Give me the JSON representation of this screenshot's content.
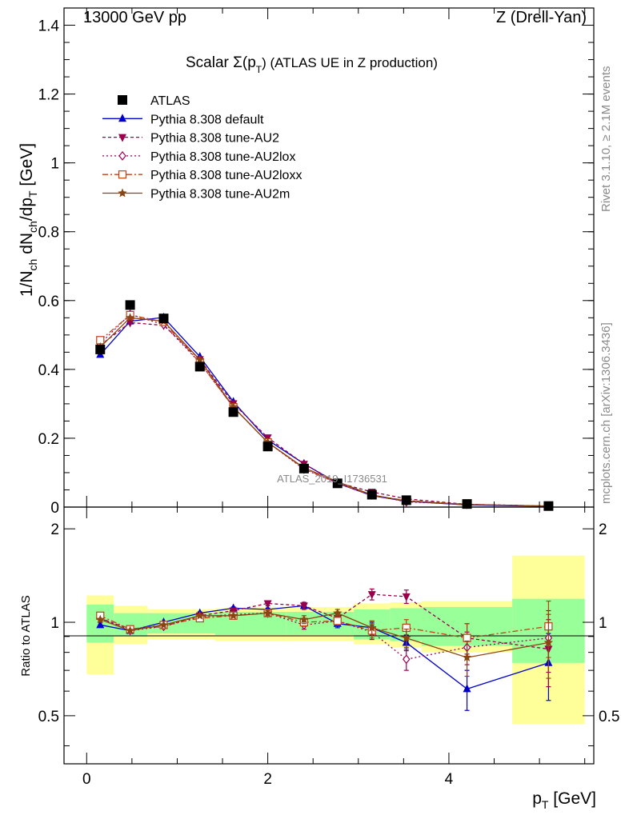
{
  "header": {
    "left": "13000 GeV pp",
    "right": "Z (Drell-Yan)"
  },
  "side_labels": {
    "rivet": "Rivet 3.1.10, ≥ 2.1M events",
    "mcplots": "mcplots.cern.ch [arXiv:1306.3436]"
  },
  "watermark": "ATLAS_2019_I1736531",
  "colors": {
    "ATLAS": "#000000",
    "default": "#0000cc",
    "AU2": "#99004c",
    "AU2lox": "#a0005a",
    "AU2loxx": "#c04010",
    "AU2m": "#8b4513",
    "band_inner": "#99ff99",
    "band_outer": "#ffff99"
  },
  "chart_data": [
    {
      "type": "line",
      "title": "Scalar Σ(p_T) (ATLAS UE in Z production)",
      "title_parts": {
        "main": "Scalar Σ(p",
        "sub": "T",
        "end": ") (ATLAS UE in Z production)"
      },
      "xlabel": "p_T [GeV]",
      "xlabel_parts": {
        "main": "p",
        "sub": "T",
        "end": " [GeV]"
      },
      "ylabel": "1/N_ch dN_ch/dp_T [GeV]",
      "xlim": [
        -0.25,
        5.6
      ],
      "ylim": [
        0,
        1.45
      ],
      "xticks": [
        "0",
        "2",
        "4"
      ],
      "yticks": [
        "0",
        "0.2",
        "0.4",
        "0.6",
        "0.8",
        "1",
        "1.2",
        "1.4"
      ],
      "legend_position": "top-left",
      "x": [
        0.15,
        0.48,
        0.85,
        1.25,
        1.62,
        2.0,
        2.4,
        2.77,
        3.15,
        3.53,
        4.2,
        5.1
      ],
      "series": [
        {
          "name": "ATLAS",
          "key": "ATLAS",
          "marker": "square",
          "dash": "none",
          "values": [
            0.458,
            0.587,
            0.548,
            0.408,
            0.276,
            0.176,
            0.112,
            0.069,
            0.036,
            0.02,
            0.009,
            0.003
          ]
        },
        {
          "name": "Pythia 8.308 default",
          "key": "default",
          "marker": "triangle-up",
          "dash": "none",
          "values": [
            0.443,
            0.54,
            0.551,
            0.437,
            0.306,
            0.195,
            0.126,
            0.069,
            0.033,
            0.017,
            0.006,
            0.002
          ]
        },
        {
          "name": "Pythia 8.308 tune-AU2",
          "key": "AU2",
          "marker": "triangle-down",
          "dash": "4,3",
          "values": [
            0.47,
            0.536,
            0.528,
            0.429,
            0.301,
            0.202,
            0.125,
            0.071,
            0.044,
            0.024,
            0.008,
            0.003
          ]
        },
        {
          "name": "Pythia 8.308 tune-AU2lox",
          "key": "AU2lox",
          "marker": "diamond-open",
          "dash": "2,3",
          "values": [
            0.475,
            0.56,
            0.53,
            0.42,
            0.29,
            0.188,
            0.11,
            0.07,
            0.035,
            0.015,
            0.008,
            0.003
          ]
        },
        {
          "name": "Pythia 8.308 tune-AU2loxx",
          "key": "AU2loxx",
          "marker": "square-open",
          "dash": "7,3,2,3",
          "values": [
            0.485,
            0.558,
            0.538,
            0.42,
            0.29,
            0.188,
            0.112,
            0.07,
            0.034,
            0.019,
            0.008,
            0.003
          ]
        },
        {
          "name": "Pythia 8.308 tune-AU2m",
          "key": "AU2m",
          "marker": "star",
          "dash": "none",
          "values": [
            0.465,
            0.55,
            0.54,
            0.428,
            0.291,
            0.188,
            0.114,
            0.074,
            0.035,
            0.018,
            0.007,
            0.003
          ]
        }
      ]
    },
    {
      "type": "line",
      "title": "",
      "xlabel": "p_T [GeV]",
      "ylabel": "Ratio to ATLAS",
      "xlim": [
        -0.25,
        5.6
      ],
      "ylim": [
        0.35,
        2.35
      ],
      "xticks": [
        "0",
        "2",
        "4"
      ],
      "yticks": [
        "0.5",
        "1",
        "2"
      ],
      "bins": [
        [
          0,
          0.3
        ],
        [
          0.3,
          0.67
        ],
        [
          0.67,
          1.05
        ],
        [
          1.05,
          1.42
        ],
        [
          1.42,
          1.8
        ],
        [
          1.8,
          2.2
        ],
        [
          2.2,
          2.6
        ],
        [
          2.6,
          2.95
        ],
        [
          2.95,
          3.35
        ],
        [
          3.35,
          3.7
        ],
        [
          3.7,
          4.7
        ],
        [
          4.7,
          5.5
        ]
      ],
      "bands": {
        "inner": [
          [
            0.86,
            1.14
          ],
          [
            0.9,
            1.07
          ],
          [
            0.92,
            1.07
          ],
          [
            0.92,
            1.07
          ],
          [
            0.91,
            1.08
          ],
          [
            0.91,
            1.08
          ],
          [
            0.91,
            1.08
          ],
          [
            0.91,
            1.08
          ],
          [
            0.88,
            1.1
          ],
          [
            0.87,
            1.11
          ],
          [
            0.84,
            1.12
          ],
          [
            0.74,
            1.19
          ]
        ],
        "outer": [
          [
            0.68,
            1.22
          ],
          [
            0.85,
            1.13
          ],
          [
            0.88,
            1.1
          ],
          [
            0.88,
            1.1
          ],
          [
            0.87,
            1.11
          ],
          [
            0.87,
            1.12
          ],
          [
            0.87,
            1.12
          ],
          [
            0.87,
            1.12
          ],
          [
            0.85,
            1.15
          ],
          [
            0.83,
            1.16
          ],
          [
            0.8,
            1.17
          ],
          [
            0.47,
            1.64
          ]
        ]
      },
      "x": [
        0.15,
        0.48,
        0.85,
        1.25,
        1.62,
        2.0,
        2.4,
        2.77,
        3.15,
        3.53,
        4.2,
        5.1
      ],
      "series": [
        {
          "name": "Pythia 8.308 default",
          "key": "default",
          "marker": "triangle-up",
          "dash": "none",
          "values": [
            0.98,
            0.94,
            1.0,
            1.07,
            1.11,
            1.1,
            1.13,
            0.99,
            0.96,
            0.86,
            0.61,
            0.74
          ],
          "errors": [
            0,
            0,
            0,
            0.01,
            0.01,
            0.01,
            0.02,
            0.03,
            0.04,
            0.05,
            0.09,
            0.18
          ]
        },
        {
          "name": "Pythia 8.308 tune-AU2",
          "key": "AU2",
          "marker": "triangle-down",
          "dash": "4,3",
          "values": [
            1.03,
            0.95,
            0.97,
            1.05,
            1.09,
            1.15,
            1.13,
            1.03,
            1.23,
            1.21,
            0.89,
            0.82
          ],
          "errors": [
            0,
            0,
            0,
            0.01,
            0.01,
            0.02,
            0.03,
            0.03,
            0.05,
            0.06,
            0.1,
            0.2
          ]
        },
        {
          "name": "Pythia 8.308 tune-AU2lox",
          "key": "AU2lox",
          "marker": "diamond-open",
          "dash": "2,3",
          "values": [
            1.03,
            0.94,
            0.97,
            1.04,
            1.06,
            1.07,
            0.98,
            1.01,
            0.93,
            0.76,
            0.83,
            0.89
          ],
          "errors": [
            0,
            0,
            0,
            0.01,
            0.01,
            0.02,
            0.03,
            0.03,
            0.05,
            0.06,
            0.1,
            0.2
          ]
        },
        {
          "name": "Pythia 8.308 tune-AU2loxx",
          "key": "AU2loxx",
          "marker": "square-open",
          "dash": "7,3,2,3",
          "values": [
            1.05,
            0.95,
            0.98,
            1.03,
            1.05,
            1.07,
            1.0,
            1.01,
            0.94,
            0.96,
            0.89,
            0.97
          ],
          "errors": [
            0,
            0,
            0,
            0.01,
            0.01,
            0.02,
            0.03,
            0.03,
            0.05,
            0.06,
            0.1,
            0.2
          ]
        },
        {
          "name": "Pythia 8.308 tune-AU2m",
          "key": "AU2m",
          "marker": "star",
          "dash": "none",
          "values": [
            1.02,
            0.94,
            0.98,
            1.05,
            1.05,
            1.07,
            1.02,
            1.07,
            0.96,
            0.89,
            0.77,
            0.86
          ],
          "errors": [
            0,
            0,
            0,
            0.01,
            0.01,
            0.02,
            0.03,
            0.03,
            0.05,
            0.06,
            0.1,
            0.2
          ]
        }
      ]
    }
  ]
}
